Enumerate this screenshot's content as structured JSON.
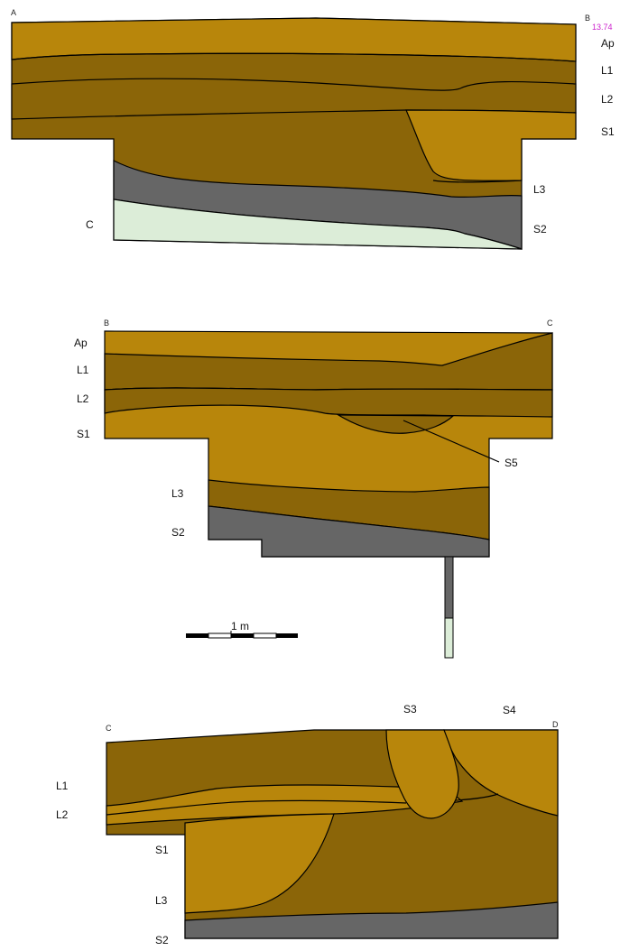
{
  "palette": {
    "light_soil": "#B8860B",
    "dark_soil": "#8B6508",
    "gray": "#666666",
    "pale_green": "#DCEDD8",
    "marker": "#CC22CC"
  },
  "section1": {
    "corner_left": "A",
    "corner_right": "B",
    "elevation": "13.74",
    "layers": [
      "Ap",
      "L1",
      "L2",
      "S1",
      "L3",
      "S2"
    ],
    "base_label": "C"
  },
  "section2": {
    "corner_left": "B",
    "corner_right": "C",
    "layers": [
      "Ap",
      "L1",
      "L2",
      "S1",
      "L3",
      "S2"
    ],
    "feature_label": "S5"
  },
  "scale_bar": {
    "label": "1 m"
  },
  "section3": {
    "corner_left": "C",
    "corner_right": "D",
    "layers": [
      "L1",
      "L2",
      "S1",
      "L3",
      "S2"
    ],
    "features": [
      "S3",
      "S4"
    ]
  }
}
